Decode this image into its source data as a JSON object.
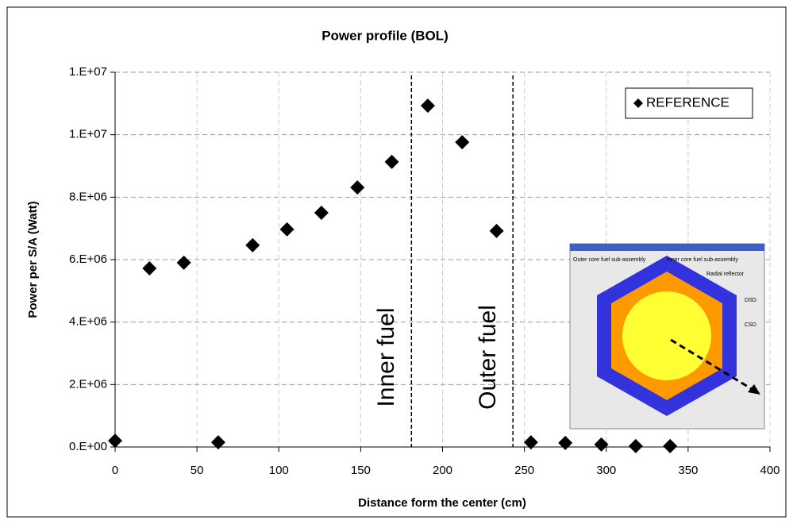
{
  "chart_data": {
    "type": "scatter",
    "title": "Power profile (BOL)",
    "x_label": "Distance form the center (cm)",
    "y_label": "Power per S/A (Watt)",
    "series": [
      {
        "name": "REFERENCE",
        "color": "#000000",
        "x": [
          0,
          21,
          42,
          63,
          84,
          105,
          126,
          148,
          169,
          191,
          212,
          233,
          254,
          275,
          297,
          318,
          339
        ],
        "values": [
          200000,
          5720000,
          5900000,
          150000,
          6460000,
          6970000,
          7500000,
          8310000,
          9130000,
          10930000,
          9760000,
          6920000,
          150000,
          130000,
          80000,
          30000,
          30000
        ]
      }
    ],
    "xlim": [
      0,
      400
    ],
    "xticks": [
      0,
      50,
      100,
      150,
      200,
      250,
      300,
      350,
      400
    ],
    "ylim": [
      0,
      12000000
    ],
    "yticks": [
      {
        "value": 0,
        "label": "0.E+00"
      },
      {
        "value": 2000000,
        "label": "2.E+06"
      },
      {
        "value": 4000000,
        "label": "4.E+06"
      },
      {
        "value": 6000000,
        "label": "6.E+06"
      },
      {
        "value": 8000000,
        "label": "8.E+06"
      },
      {
        "value": 10000000,
        "label": "1.E+07"
      },
      {
        "value": 12000000,
        "label": "1.E+07"
      }
    ],
    "grid": true,
    "legend": "upper right",
    "boundaries": [
      {
        "x": 181,
        "label": "Inner fuel"
      },
      {
        "x": 243,
        "label": "Outer fuel"
      }
    ],
    "inset_labels": [
      "Outer core fuel sub-assembly",
      "Inner core fuel sub-assembly",
      "Radial reflector",
      "DSD",
      "CSD"
    ]
  }
}
